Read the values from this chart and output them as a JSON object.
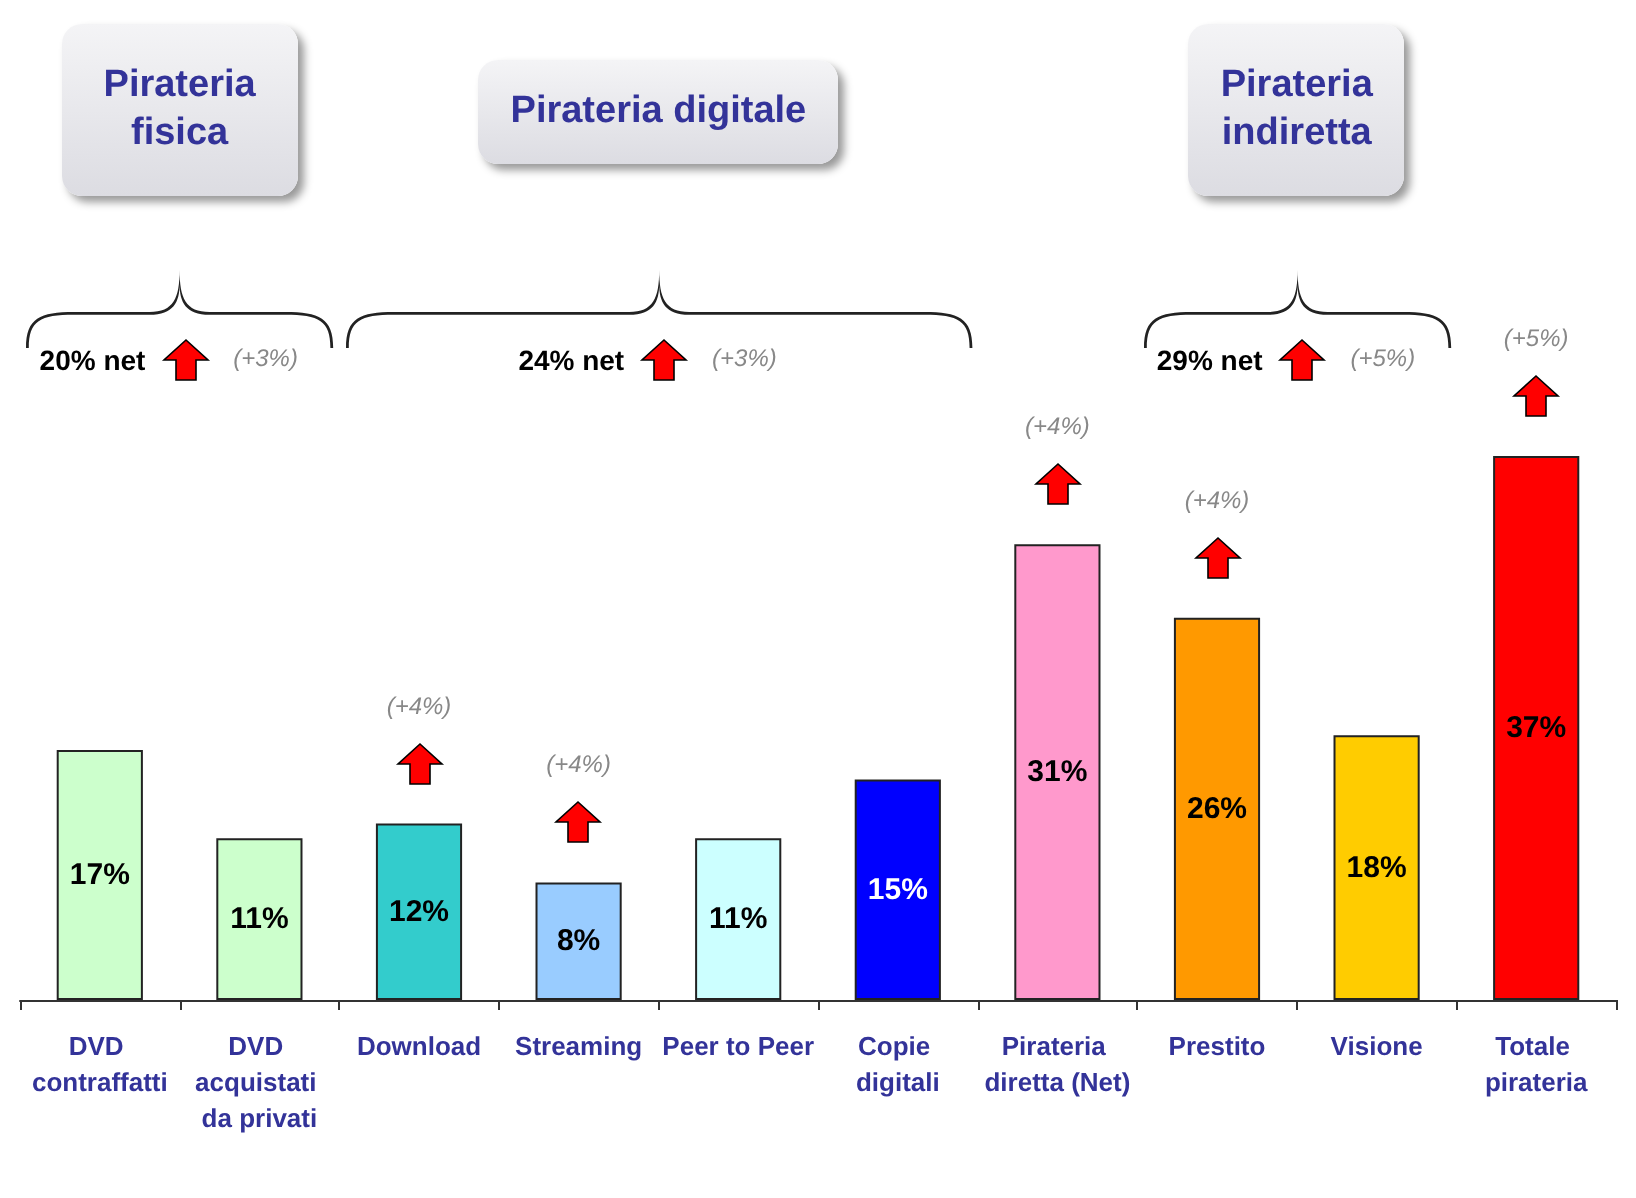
{
  "chart_data": {
    "type": "bar",
    "categories": [
      "DVD contraffatti",
      "DVD acquistati da privati",
      "Download",
      "Streaming",
      "Peer to Peer",
      "Copie digitali",
      "Pirateria diretta (Net)",
      "Prestito",
      "Visione",
      "Totale pirateria"
    ],
    "values": [
      17,
      11,
      12,
      8,
      11,
      15,
      31,
      26,
      18,
      37
    ],
    "value_labels": [
      "17%",
      "11%",
      "12%",
      "8%",
      "11%",
      "15%",
      "31%",
      "26%",
      "18%",
      "37%"
    ],
    "colors": [
      "#ccffcc",
      "#ccffcc",
      "#33cccc",
      "#99ccff",
      "#ccffff",
      "#0000ff",
      "#ff99cc",
      "#ff9900",
      "#ffcc00",
      "#ff0000"
    ],
    "tick_labels": "x",
    "annotations": [
      "Pirateria fisica",
      "Pirateria digitale",
      "Pirateria indiretta",
      "20% net",
      "(+3%)",
      "24% net",
      "(+3%)",
      "29% net",
      "(+5%)",
      "(+4%)",
      "(+4%)",
      "(+4%)",
      "(+4%)",
      "(+5%)"
    ]
  }
}
